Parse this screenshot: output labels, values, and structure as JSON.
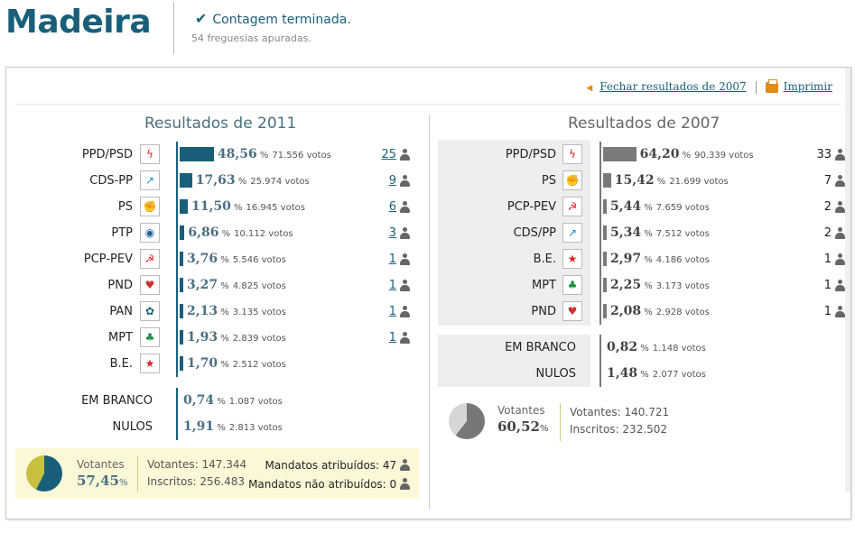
{
  "header": {
    "region": "Madeira",
    "status": "Contagem terminada.",
    "sub": "54 freguesias apuradas."
  },
  "links": {
    "close": "Fechar resultados de 2007",
    "print": "Imprimir"
  },
  "r2011": {
    "title": "Resultados de 2011",
    "parties": [
      {
        "name": "PPD/PSD",
        "pct": "48,56",
        "votes": "71.556 votos",
        "seats": "25",
        "share": 48.56
      },
      {
        "name": "CDS-PP",
        "pct": "17,63",
        "votes": "25.974 votos",
        "seats": "9",
        "share": 17.63
      },
      {
        "name": "PS",
        "pct": "11,50",
        "votes": "16.945 votos",
        "seats": "6",
        "share": 11.5
      },
      {
        "name": "PTP",
        "pct": "6,86",
        "votes": "10.112 votos",
        "seats": "3",
        "share": 6.86
      },
      {
        "name": "PCP-PEV",
        "pct": "3,76",
        "votes": "5.546 votos",
        "seats": "1",
        "share": 3.76
      },
      {
        "name": "PND",
        "pct": "3,27",
        "votes": "4.825 votos",
        "seats": "1",
        "share": 3.27
      },
      {
        "name": "PAN",
        "pct": "2,13",
        "votes": "3.135 votos",
        "seats": "1",
        "share": 2.13
      },
      {
        "name": "MPT",
        "pct": "1,93",
        "votes": "2.839 votos",
        "seats": "1",
        "share": 1.93
      },
      {
        "name": "B.E.",
        "pct": "1,70",
        "votes": "2.512 votos",
        "seats": "",
        "share": 1.7
      }
    ],
    "blank": {
      "name": "EM BRANCO",
      "pct": "0,74",
      "votes": "1.087 votos"
    },
    "null": {
      "name": "NULOS",
      "pct": "1,91",
      "votes": "2.813 votos"
    },
    "turnout_label": "Votantes",
    "turnout_pct": "57,45",
    "turnout_share": 57.45,
    "voters": "Votantes: 147.344",
    "registered": "Inscritos: 256.483",
    "mandates": "Mandatos atribuídos: 47",
    "mandates_not": "Mandatos não atribuídos: 0"
  },
  "r2007": {
    "title": "Resultados de 2007",
    "parties": [
      {
        "name": "PPD/PSD",
        "pct": "64,20",
        "votes": "90.339 votos",
        "seats": "33",
        "share": 64.2
      },
      {
        "name": "PS",
        "pct": "15,42",
        "votes": "21.699 votos",
        "seats": "7",
        "share": 15.42
      },
      {
        "name": "PCP-PEV",
        "pct": "5,44",
        "votes": "7.659 votos",
        "seats": "2",
        "share": 5.44
      },
      {
        "name": "CDS/PP",
        "pct": "5,34",
        "votes": "7.512 votos",
        "seats": "2",
        "share": 5.34
      },
      {
        "name": "B.E.",
        "pct": "2,97",
        "votes": "4.186 votos",
        "seats": "1",
        "share": 2.97
      },
      {
        "name": "MPT",
        "pct": "2,25",
        "votes": "3.173 votos",
        "seats": "1",
        "share": 2.25
      },
      {
        "name": "PND",
        "pct": "2,08",
        "votes": "2.928 votos",
        "seats": "1",
        "share": 2.08
      }
    ],
    "blank": {
      "name": "EM BRANCO",
      "pct": "0,82",
      "votes": "1.148 votos"
    },
    "null": {
      "name": "NULOS",
      "pct": "1,48",
      "votes": "2.077 votos"
    },
    "turnout_label": "Votantes",
    "turnout_pct": "60,52",
    "turnout_share": 60.52,
    "voters": "Votantes: 140.721",
    "registered": "Inscritos: 232.502"
  },
  "pct_sign": "%",
  "colors": {
    "accent": "#1a5f7a",
    "grey_bar": "#7a7a7a",
    "pie_2011": "#1a5f7a",
    "pie_2011_rest": "#c8c040",
    "pie_2007": "#777777"
  }
}
